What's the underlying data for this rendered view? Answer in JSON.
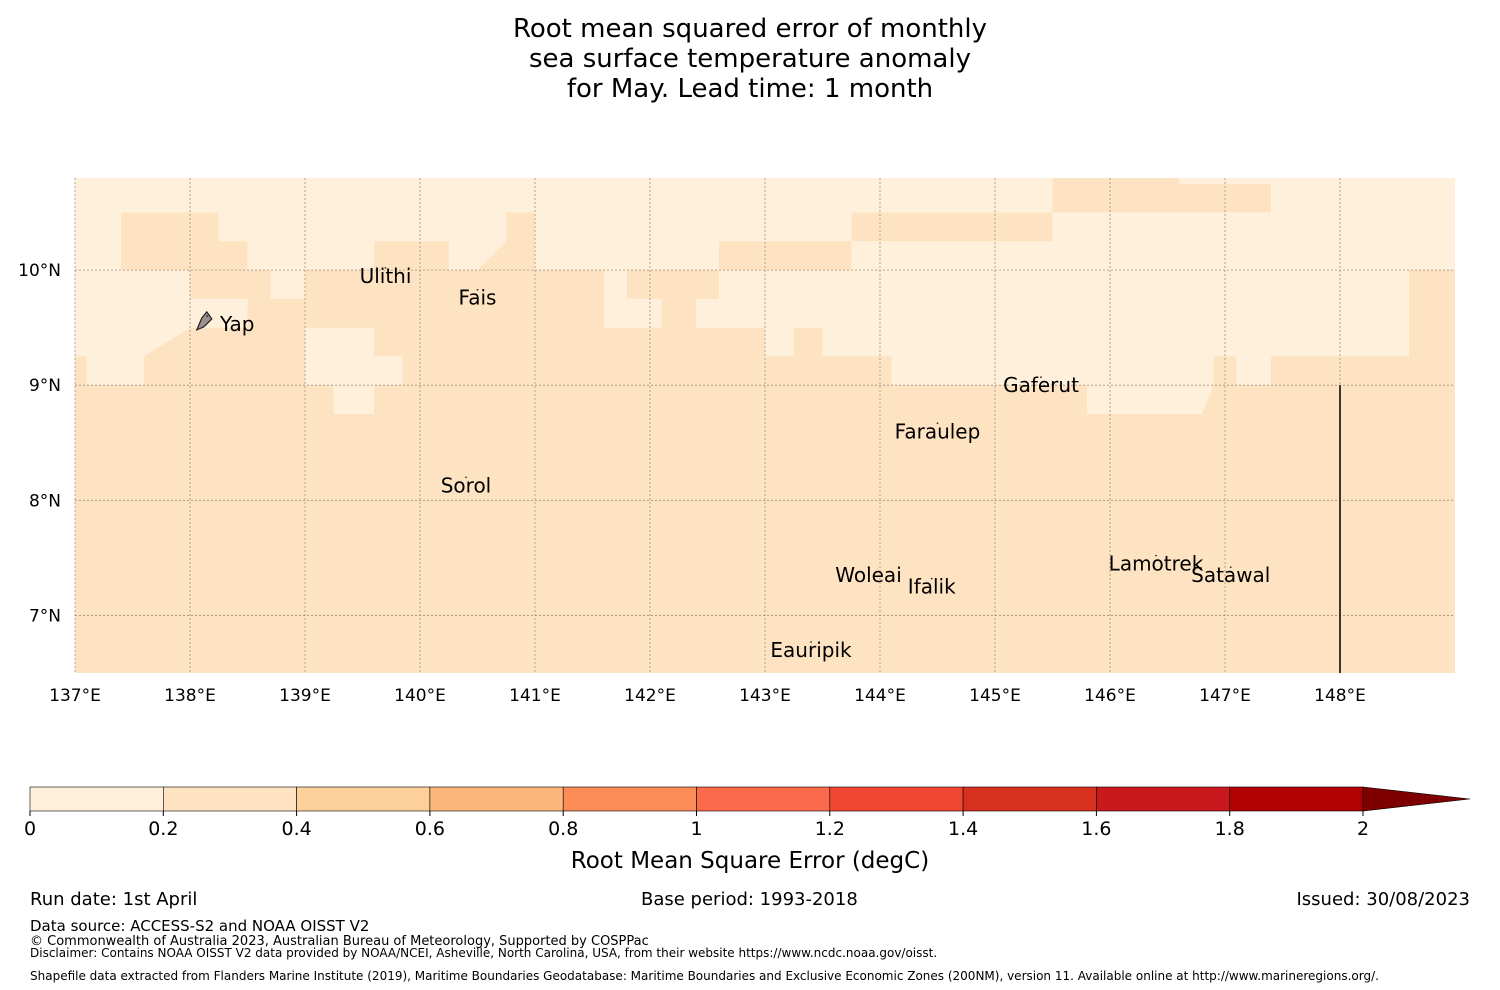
{
  "title": {
    "line1": "Root mean squared error of monthly",
    "line2": "sea surface temperature anomaly",
    "line3": "for May. Lead time: 1 month"
  },
  "map": {
    "lon_range": [
      137,
      149
    ],
    "lat_range": [
      6.5,
      10.8
    ],
    "lon_ticks": [
      {
        "value": 137,
        "label": "137°E"
      },
      {
        "value": 138,
        "label": "138°E"
      },
      {
        "value": 139,
        "label": "139°E"
      },
      {
        "value": 140,
        "label": "140°E"
      },
      {
        "value": 141,
        "label": "141°E"
      },
      {
        "value": 142,
        "label": "142°E"
      },
      {
        "value": 143,
        "label": "143°E"
      },
      {
        "value": 144,
        "label": "144°E"
      },
      {
        "value": 145,
        "label": "145°E"
      },
      {
        "value": 146,
        "label": "146°E"
      },
      {
        "value": 147,
        "label": "147°E"
      },
      {
        "value": 148,
        "label": "148°E"
      }
    ],
    "lat_ticks": [
      {
        "value": 10,
        "label": "10°N"
      },
      {
        "value": 9,
        "label": "9°N"
      },
      {
        "value": 8,
        "label": "8°N"
      },
      {
        "value": 7,
        "label": "7°N"
      }
    ],
    "places": [
      {
        "name": "Ulithi",
        "lon": 139.7,
        "lat": 9.95
      },
      {
        "name": "Fais",
        "lon": 140.5,
        "lat": 9.76
      },
      {
        "name": "Yap",
        "lon": 138.15,
        "lat": 9.53
      },
      {
        "name": "Gaferut",
        "lon": 145.4,
        "lat": 9.0
      },
      {
        "name": "Faraulep",
        "lon": 144.5,
        "lat": 8.6
      },
      {
        "name": "Sorol",
        "lon": 140.4,
        "lat": 8.13
      },
      {
        "name": "Woleai",
        "lon": 143.9,
        "lat": 7.35
      },
      {
        "name": "Ifalik",
        "lon": 144.45,
        "lat": 7.25
      },
      {
        "name": "Lamotrek",
        "lon": 146.4,
        "lat": 7.45
      },
      {
        "name": "Satawal",
        "lon": 147.05,
        "lat": 7.35
      },
      {
        "name": "Eauripik",
        "lon": 143.4,
        "lat": 6.7
      }
    ],
    "boundary_line": {
      "lon": 148.0,
      "lat_from": 6.5,
      "lat_to": 9.0
    },
    "grid_resolution_deg": 0.25,
    "background_rmse": 0.3,
    "low_error_regions_rmse": 0.1
  },
  "colorbar": {
    "label": "Root Mean Square Error (degC)",
    "ticks": [
      "0",
      "0.2",
      "0.4",
      "0.6",
      "0.8",
      "1",
      "1.2",
      "1.4",
      "1.6",
      "1.8",
      "2"
    ],
    "colors": [
      "#fff0dc",
      "#fee3c2",
      "#fdd09b",
      "#fdb77a",
      "#fc8d59",
      "#fb6a4a",
      "#f14632",
      "#d7301f",
      "#cb181d",
      "#b30000",
      "#7f0000"
    ],
    "extend": "max"
  },
  "footer": {
    "run_date": "Run date: 1st April",
    "base_period": "Base period: 1993-2018",
    "issued": "Issued: 30/08/2023",
    "data_source": "Data source: ACCESS-S2 and NOAA OISST V2",
    "copyright": "© Commonwealth of Australia 2023, Australian Bureau of Meteorology, Supported by COSPPac",
    "disclaimer": "Disclaimer: Contains NOAA OISST V2 data provided by NOAA/NCEI, Asheville, North Carolina, USA, from their website https://www.ncdc.noaa.gov/oisst.",
    "shapefile": "Shapefile data extracted from Flanders Marine Institute (2019), Maritime Boundaries Geodatabase: Maritime Boundaries and Exclusive Economic Zones (200NM), version 11. Available online at http://www.marineregions.org/."
  }
}
